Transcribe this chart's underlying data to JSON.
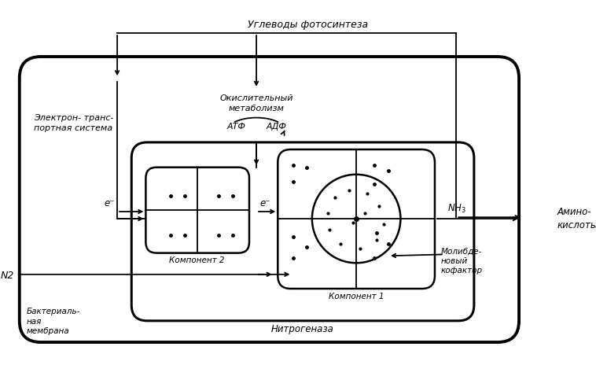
{
  "bg_color": "#ffffff",
  "line_color": "#000000",
  "title": "Углеводы фотосинтеза",
  "text_electron_transport": "Электрон- транс-\nпортная система",
  "text_oxidative": "Окислительный\nметаболизм",
  "text_atf": "АТФ",
  "text_adf": "АДФ",
  "text_component2": "Компонент 2",
  "text_component1": "Компонент 1",
  "text_nitrogenase": "Нитрогеназа",
  "text_molybdenum": "Молибде-\nновый\nкофактор",
  "text_nh3": "NH3",
  "text_amino": "Амино-\nкислоты",
  "text_n2": "N2",
  "text_bacterial_membrane": "Бактериаль-\nная\nмембрана",
  "text_e1": "e⁻",
  "text_e2": "e⁻",
  "figsize": [
    7.58,
    4.78
  ],
  "dpi": 100
}
